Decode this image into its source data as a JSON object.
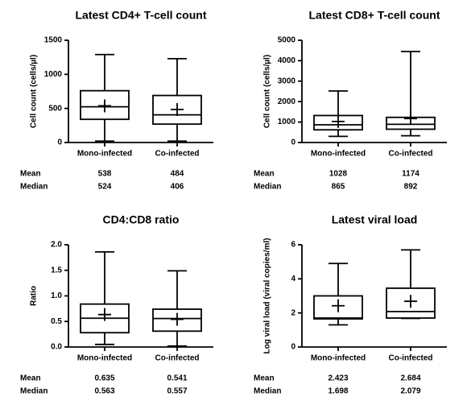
{
  "chart_data": [
    {
      "type": "box",
      "title": "Latest CD4+ T-cell count",
      "ylabel": "Cell count (cells/µl)",
      "categories": [
        "Mono-infected",
        "Co-infected"
      ],
      "boxes": [
        {
          "min": 20,
          "q1": 340,
          "median": 524,
          "q3": 760,
          "max": 1290,
          "mean": 538
        },
        {
          "min": 20,
          "q1": 270,
          "median": 406,
          "q3": 690,
          "max": 1230,
          "mean": 484
        }
      ],
      "stat_labels": [
        "Mean",
        "Median"
      ],
      "ylim": [
        0,
        1500
      ],
      "yticks": [
        0,
        500,
        1000,
        1500
      ]
    },
    {
      "type": "box",
      "title": "Latest CD8+ T-cell count",
      "ylabel": "Cell count (cells/µl)",
      "categories": [
        "Mono-infected",
        "Co-infected"
      ],
      "boxes": [
        {
          "min": 300,
          "q1": 620,
          "median": 865,
          "q3": 1320,
          "max": 2520,
          "mean": 1028
        },
        {
          "min": 330,
          "q1": 650,
          "median": 892,
          "q3": 1230,
          "max": 4450,
          "mean": 1174
        }
      ],
      "stat_labels": [
        "Mean",
        "Median"
      ],
      "ylim": [
        0,
        5000
      ],
      "yticks": [
        0,
        1000,
        2000,
        3000,
        4000,
        5000
      ]
    },
    {
      "type": "box",
      "title": "CD4:CD8 ratio",
      "ylabel": "Ratio",
      "categories": [
        "Mono-infected",
        "Co-infected"
      ],
      "boxes": [
        {
          "min": 0.05,
          "q1": 0.28,
          "median": 0.563,
          "q3": 0.84,
          "max": 1.86,
          "mean": 0.635
        },
        {
          "min": 0.02,
          "q1": 0.31,
          "median": 0.557,
          "q3": 0.74,
          "max": 1.49,
          "mean": 0.541
        }
      ],
      "stat_labels": [
        "Mean",
        "Median"
      ],
      "ylim": [
        0,
        2
      ],
      "yticks": [
        {
          "value": 0,
          "label": "0.0"
        },
        0.5,
        {
          "value": 1,
          "label": "1.0"
        },
        1.5,
        {
          "value": 2,
          "label": "2.0"
        }
      ]
    },
    {
      "type": "box",
      "title": "Latest viral load",
      "ylabel": "Log viral load (viral copies/ml)",
      "categories": [
        "Mono-infected",
        "Co-infected"
      ],
      "boxes": [
        {
          "min": 1.3,
          "q1": 1.65,
          "median": 1.698,
          "q3": 3.0,
          "max": 4.9,
          "mean": 2.423
        },
        {
          "min": 1.68,
          "q1": 1.7,
          "median": 2.079,
          "q3": 3.45,
          "max": 5.7,
          "mean": 2.684
        }
      ],
      "stat_labels": [
        "Mean",
        "Median"
      ],
      "ylim": [
        0,
        6
      ],
      "yticks": [
        0,
        2,
        4,
        6
      ]
    }
  ]
}
